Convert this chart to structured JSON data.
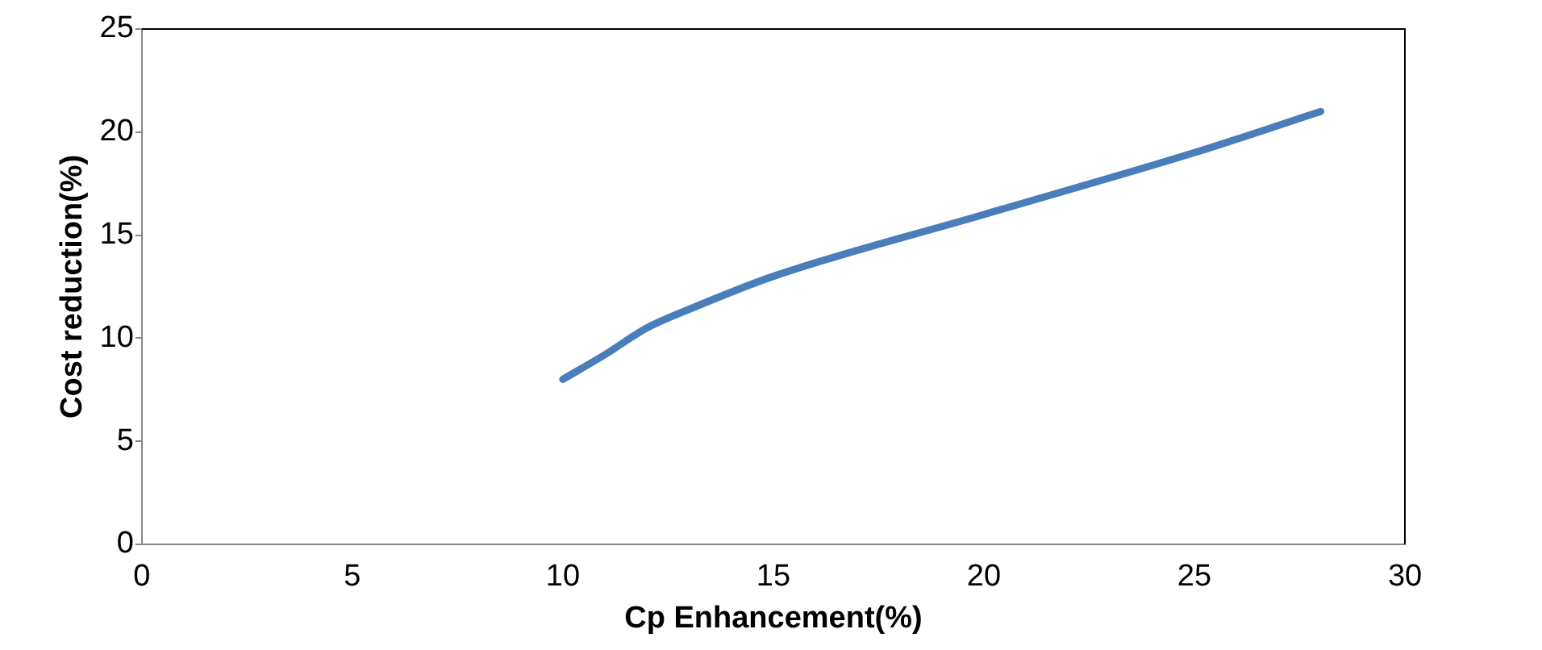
{
  "chart_data": {
    "type": "line",
    "xlabel": "Cp Enhancement(%)",
    "ylabel": "Cost reduction(%)",
    "series": [
      {
        "color": "#4a7ebb",
        "x": [
          10,
          11,
          12,
          13,
          15,
          20,
          25,
          28
        ],
        "values": [
          8,
          9.2,
          10.5,
          11.4,
          13,
          16,
          19,
          21
        ]
      }
    ],
    "xlim": [
      0,
      30
    ],
    "xticks": [
      0,
      5,
      10,
      15,
      20,
      25,
      30
    ],
    "ylim": [
      0,
      25
    ],
    "yticks": [
      0,
      5,
      10,
      15,
      20,
      25
    ],
    "grid": false,
    "legend": false,
    "marker": "none",
    "line_style": "solid"
  }
}
